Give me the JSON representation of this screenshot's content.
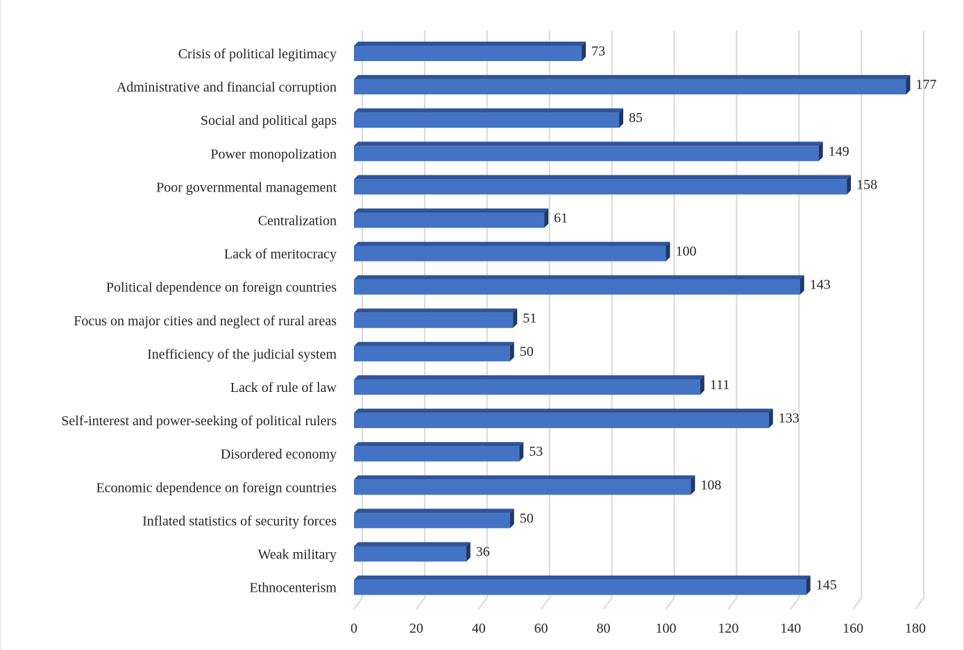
{
  "chart_data": {
    "type": "bar",
    "orientation": "horizontal",
    "categories": [
      "Crisis of political legitimacy",
      "Administrative and financial corruption",
      "Social and political gaps",
      "Power monopolization",
      "Poor governmental management",
      "Centralization",
      "Lack of meritocracy",
      "Political dependence on foreign countries",
      "Focus on major cities and neglect of rural areas",
      "Inefficiency of the judicial system",
      "Lack of rule of law",
      "Self-interest and power-seeking of political rulers",
      "Disordered economy",
      "Economic dependence on foreign countries",
      "Inflated statistics of security forces",
      "Weak military",
      "Ethnocenterism"
    ],
    "values": [
      73,
      177,
      85,
      149,
      158,
      61,
      100,
      143,
      51,
      50,
      111,
      133,
      53,
      108,
      50,
      36,
      145
    ],
    "xlim": [
      0,
      180
    ],
    "xticks": [
      0,
      20,
      40,
      60,
      80,
      100,
      120,
      140,
      160,
      180
    ],
    "grid": true,
    "data_labels": true,
    "bar_color": "#4472c4",
    "bar_top_color": "#2f5597",
    "bar_side_color": "#1f3864",
    "gridline_color": "#d9d9d9"
  }
}
